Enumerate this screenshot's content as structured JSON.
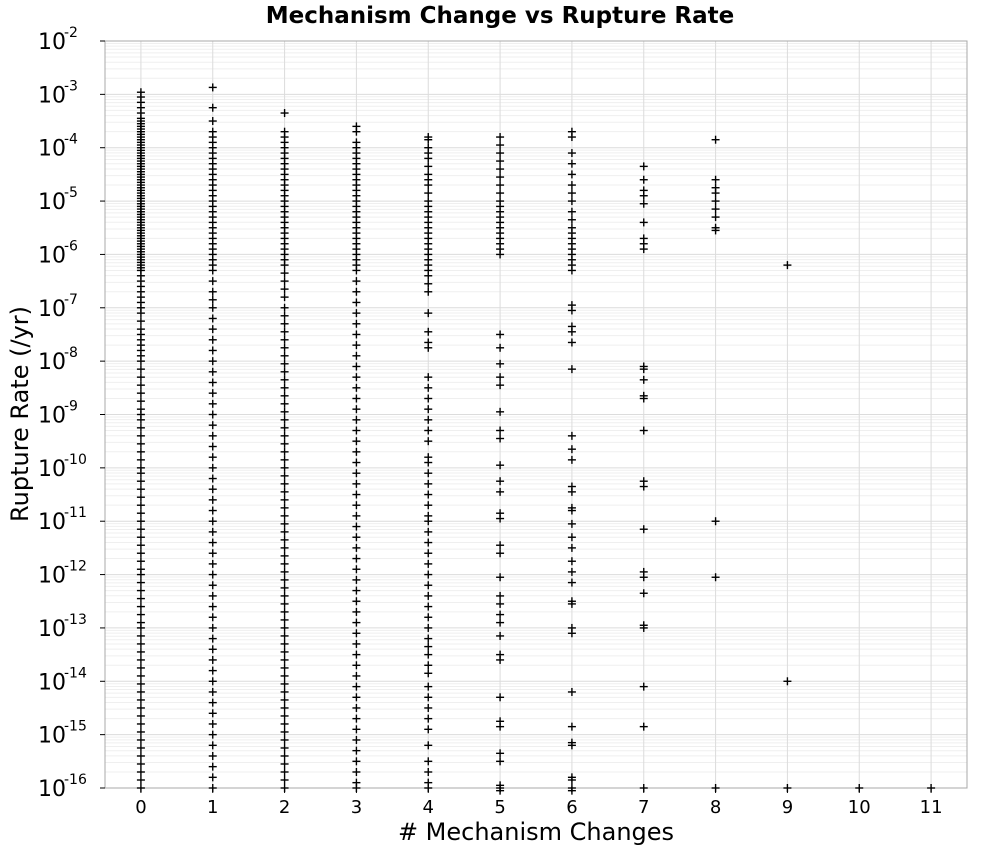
{
  "chart_data": {
    "type": "scatter",
    "title": "Mechanism Change vs Rupture Rate",
    "xlabel": "# Mechanism Changes",
    "ylabel": "Rupture Rate (/yr)",
    "x_ticks": [
      "0",
      "1",
      "2",
      "3",
      "4",
      "5",
      "6",
      "7",
      "8",
      "9",
      "10",
      "11"
    ],
    "xlim": [
      -0.5,
      11.5
    ],
    "y_scale": "log",
    "ylim": [
      1e-16,
      0.01
    ],
    "y_ticks": [
      {
        "base": "10",
        "exp": "-2"
      },
      {
        "base": "10",
        "exp": "-3"
      },
      {
        "base": "10",
        "exp": "-4"
      },
      {
        "base": "10",
        "exp": "-5"
      },
      {
        "base": "10",
        "exp": "-6"
      },
      {
        "base": "10",
        "exp": "-7"
      },
      {
        "base": "10",
        "exp": "-8"
      },
      {
        "base": "10",
        "exp": "-9"
      },
      {
        "base": "10",
        "exp": "-10"
      },
      {
        "base": "10",
        "exp": "-11"
      },
      {
        "base": "10",
        "exp": "-12"
      },
      {
        "base": "10",
        "exp": "-13"
      },
      {
        "base": "10",
        "exp": "-14"
      },
      {
        "base": "10",
        "exp": "-15"
      },
      {
        "base": "10",
        "exp": "-16"
      }
    ],
    "grid": true,
    "marker": "plus",
    "marker_color": "#000000",
    "series": [
      {
        "x": 0,
        "log10_y": [
          -2.96,
          -3.05,
          -3.15,
          -3.25,
          -3.35,
          -3.45,
          -3.5,
          -3.55,
          -3.6,
          -3.65,
          -3.7,
          -3.75,
          -3.8,
          -3.85,
          -3.9,
          -3.95,
          -4.0,
          -4.05,
          -4.1,
          -4.15,
          -4.2,
          -4.25,
          -4.3,
          -4.35,
          -4.4,
          -4.45,
          -4.5,
          -4.55,
          -4.6,
          -4.65,
          -4.7,
          -4.75,
          -4.8,
          -4.85,
          -4.9,
          -4.95,
          -5.0,
          -5.05,
          -5.1,
          -5.15,
          -5.2,
          -5.25,
          -5.3,
          -5.35,
          -5.4,
          -5.45,
          -5.5,
          -5.55,
          -5.6,
          -5.65,
          -5.7,
          -5.75,
          -5.8,
          -5.85,
          -5.9,
          -5.95,
          -6.0,
          -6.05,
          -6.1,
          -6.15,
          -6.2,
          -6.25,
          -6.3,
          -6.4,
          -6.5,
          -6.6,
          -6.7,
          -6.8,
          -6.9,
          -7.0,
          -7.1,
          -7.25,
          -7.4,
          -7.5,
          -7.6,
          -7.7,
          -7.8,
          -7.9,
          -8.0,
          -8.15,
          -8.3,
          -8.45,
          -8.6,
          -8.75,
          -8.9,
          -9.0,
          -9.1,
          -9.25,
          -9.4,
          -9.55,
          -9.7,
          -9.85,
          -10.0,
          -10.1,
          -10.25,
          -10.4,
          -10.55,
          -10.7,
          -10.85,
          -11.0,
          -11.15,
          -11.3,
          -11.45,
          -11.6,
          -11.75,
          -11.9,
          -12.0,
          -12.15,
          -12.3,
          -12.45,
          -12.6,
          -12.75,
          -12.9,
          -13.0,
          -13.15,
          -13.3,
          -13.45,
          -13.6,
          -13.75,
          -13.9,
          -14.05,
          -14.2,
          -14.35,
          -14.5,
          -14.65,
          -14.8,
          -14.95,
          -15.1,
          -15.25,
          -15.4,
          -15.55,
          -15.7,
          -15.85,
          -16.0
        ]
      },
      {
        "x": 1,
        "log10_y": [
          -2.87,
          -3.25,
          -3.5,
          -3.7,
          -3.8,
          -3.9,
          -4.0,
          -4.1,
          -4.2,
          -4.3,
          -4.4,
          -4.5,
          -4.6,
          -4.7,
          -4.8,
          -4.9,
          -5.0,
          -5.1,
          -5.2,
          -5.3,
          -5.4,
          -5.5,
          -5.6,
          -5.7,
          -5.8,
          -5.9,
          -6.0,
          -6.1,
          -6.2,
          -6.3,
          -6.5,
          -6.7,
          -6.85,
          -7.0,
          -7.2,
          -7.4,
          -7.6,
          -7.8,
          -8.0,
          -8.2,
          -8.4,
          -8.6,
          -8.8,
          -9.0,
          -9.2,
          -9.4,
          -9.6,
          -9.8,
          -10.0,
          -10.2,
          -10.4,
          -10.6,
          -10.8,
          -11.0,
          -11.2,
          -11.4,
          -11.6,
          -11.8,
          -12.0,
          -12.2,
          -12.4,
          -12.6,
          -12.8,
          -13.0,
          -13.2,
          -13.4,
          -13.6,
          -13.8,
          -14.0,
          -14.2,
          -14.4,
          -14.6,
          -14.8,
          -15.0,
          -15.2,
          -15.4,
          -15.6,
          -15.8,
          -16.0
        ]
      },
      {
        "x": 2,
        "log10_y": [
          -3.35,
          -3.7,
          -3.8,
          -3.9,
          -4.0,
          -4.1,
          -4.2,
          -4.3,
          -4.4,
          -4.5,
          -4.6,
          -4.7,
          -4.8,
          -4.9,
          -5.0,
          -5.1,
          -5.2,
          -5.3,
          -5.4,
          -5.5,
          -5.6,
          -5.7,
          -5.8,
          -5.9,
          -6.0,
          -6.1,
          -6.2,
          -6.35,
          -6.5,
          -6.65,
          -6.8,
          -7.0,
          -7.15,
          -7.3,
          -7.45,
          -7.6,
          -7.75,
          -7.9,
          -8.05,
          -8.2,
          -8.35,
          -8.5,
          -8.65,
          -8.8,
          -8.95,
          -9.1,
          -9.25,
          -9.4,
          -9.55,
          -9.7,
          -9.85,
          -10.0,
          -10.15,
          -10.3,
          -10.45,
          -10.6,
          -10.75,
          -10.9,
          -11.05,
          -11.2,
          -11.35,
          -11.5,
          -11.65,
          -11.8,
          -11.95,
          -12.1,
          -12.25,
          -12.4,
          -12.55,
          -12.7,
          -12.85,
          -13.0,
          -13.15,
          -13.3,
          -13.45,
          -13.6,
          -13.75,
          -13.9,
          -14.05,
          -14.2,
          -14.35,
          -14.5,
          -14.65,
          -14.8,
          -14.95,
          -15.1,
          -15.25,
          -15.4,
          -15.55,
          -15.7,
          -15.85,
          -16.0
        ]
      },
      {
        "x": 3,
        "log10_y": [
          -3.6,
          -3.7,
          -3.9,
          -4.0,
          -4.1,
          -4.2,
          -4.3,
          -4.4,
          -4.5,
          -4.6,
          -4.7,
          -4.8,
          -4.9,
          -5.0,
          -5.1,
          -5.2,
          -5.3,
          -5.4,
          -5.5,
          -5.6,
          -5.7,
          -5.8,
          -5.9,
          -6.0,
          -6.1,
          -6.2,
          -6.3,
          -6.5,
          -6.7,
          -6.9,
          -7.1,
          -7.3,
          -7.5,
          -7.7,
          -7.9,
          -8.1,
          -8.3,
          -8.5,
          -8.7,
          -8.9,
          -9.1,
          -9.3,
          -9.5,
          -9.7,
          -9.9,
          -10.1,
          -10.3,
          -10.5,
          -10.7,
          -10.9,
          -11.1,
          -11.3,
          -11.5,
          -11.7,
          -11.9,
          -12.1,
          -12.3,
          -12.5,
          -12.7,
          -12.9,
          -13.1,
          -13.3,
          -13.5,
          -13.7,
          -13.9,
          -14.1,
          -14.3,
          -14.5,
          -14.7,
          -14.9,
          -15.1,
          -15.3,
          -15.5,
          -15.7,
          -15.9,
          -16.0
        ]
      },
      {
        "x": 4,
        "log10_y": [
          -3.8,
          -3.85,
          -4.0,
          -4.1,
          -4.2,
          -4.35,
          -4.5,
          -4.6,
          -4.7,
          -4.85,
          -5.0,
          -5.1,
          -5.2,
          -5.3,
          -5.4,
          -5.5,
          -5.6,
          -5.7,
          -5.8,
          -5.9,
          -6.0,
          -6.1,
          -6.2,
          -6.3,
          -6.4,
          -6.55,
          -6.7,
          -7.1,
          -7.45,
          -7.65,
          -7.75,
          -8.3,
          -8.5,
          -8.7,
          -8.9,
          -9.1,
          -9.3,
          -9.5,
          -9.8,
          -9.9,
          -10.1,
          -10.3,
          -10.5,
          -10.7,
          -10.9,
          -11.0,
          -11.2,
          -11.4,
          -11.6,
          -11.8,
          -12.0,
          -12.2,
          -12.4,
          -12.6,
          -12.8,
          -13.0,
          -13.2,
          -13.35,
          -13.5,
          -13.7,
          -13.85,
          -14.1,
          -14.3,
          -14.5,
          -14.7,
          -14.9,
          -15.2,
          -15.5,
          -15.7,
          -15.9,
          -16.0
        ]
      },
      {
        "x": 5,
        "log10_y": [
          -3.8,
          -3.95,
          -4.1,
          -4.25,
          -4.4,
          -4.55,
          -4.7,
          -4.85,
          -5.0,
          -5.1,
          -5.2,
          -5.3,
          -5.4,
          -5.5,
          -5.6,
          -5.7,
          -5.8,
          -5.9,
          -6.0,
          -7.5,
          -7.75,
          -8.05,
          -8.3,
          -8.45,
          -8.95,
          -9.3,
          -9.45,
          -9.95,
          -10.25,
          -10.45,
          -10.85,
          -10.95,
          -11.45,
          -11.6,
          -12.05,
          -12.4,
          -12.55,
          -12.75,
          -12.9,
          -13.15,
          -13.5,
          -13.6,
          -14.3,
          -14.75,
          -14.85,
          -15.35,
          -15.5,
          -15.95,
          -16.05,
          -16.0
        ]
      },
      {
        "x": 6,
        "log10_y": [
          -3.7,
          -3.8,
          -4.1,
          -4.3,
          -4.5,
          -4.7,
          -4.85,
          -5.0,
          -5.2,
          -5.35,
          -5.5,
          -5.6,
          -5.7,
          -5.8,
          -5.9,
          -6.0,
          -6.1,
          -6.2,
          -6.3,
          -6.95,
          -7.05,
          -7.35,
          -7.45,
          -7.65,
          -8.15,
          -9.4,
          -9.65,
          -9.85,
          -10.35,
          -10.45,
          -10.75,
          -10.8,
          -11.05,
          -11.3,
          -11.5,
          -11.75,
          -11.95,
          -12.15,
          -12.5,
          -12.55,
          -13.0,
          -13.1,
          -14.2,
          -14.85,
          -15.15,
          -15.2,
          -15.8,
          -15.85,
          -16.05,
          -16.0
        ]
      },
      {
        "x": 7,
        "log10_y": [
          -4.35,
          -4.6,
          -4.8,
          -4.9,
          -5.05,
          -5.4,
          -5.7,
          -5.8,
          -5.9,
          -8.1,
          -8.15,
          -8.35,
          -8.65,
          -8.7,
          -9.3,
          -10.25,
          -10.35,
          -11.15,
          -11.95,
          -12.05,
          -12.35,
          -12.95,
          -13.0,
          -14.1,
          -14.85,
          -16.0
        ]
      },
      {
        "x": 8,
        "log10_y": [
          -3.85,
          -4.6,
          -4.75,
          -4.85,
          -5.0,
          -5.15,
          -5.3,
          -5.5,
          -5.55,
          -11.0,
          -12.05,
          -16.0
        ]
      },
      {
        "x": 9,
        "log10_y": [
          -6.2,
          -14.0,
          -16.0
        ]
      },
      {
        "x": 10,
        "log10_y": [
          -16.0
        ]
      },
      {
        "x": 11,
        "log10_y": [
          -16.0
        ]
      }
    ]
  }
}
